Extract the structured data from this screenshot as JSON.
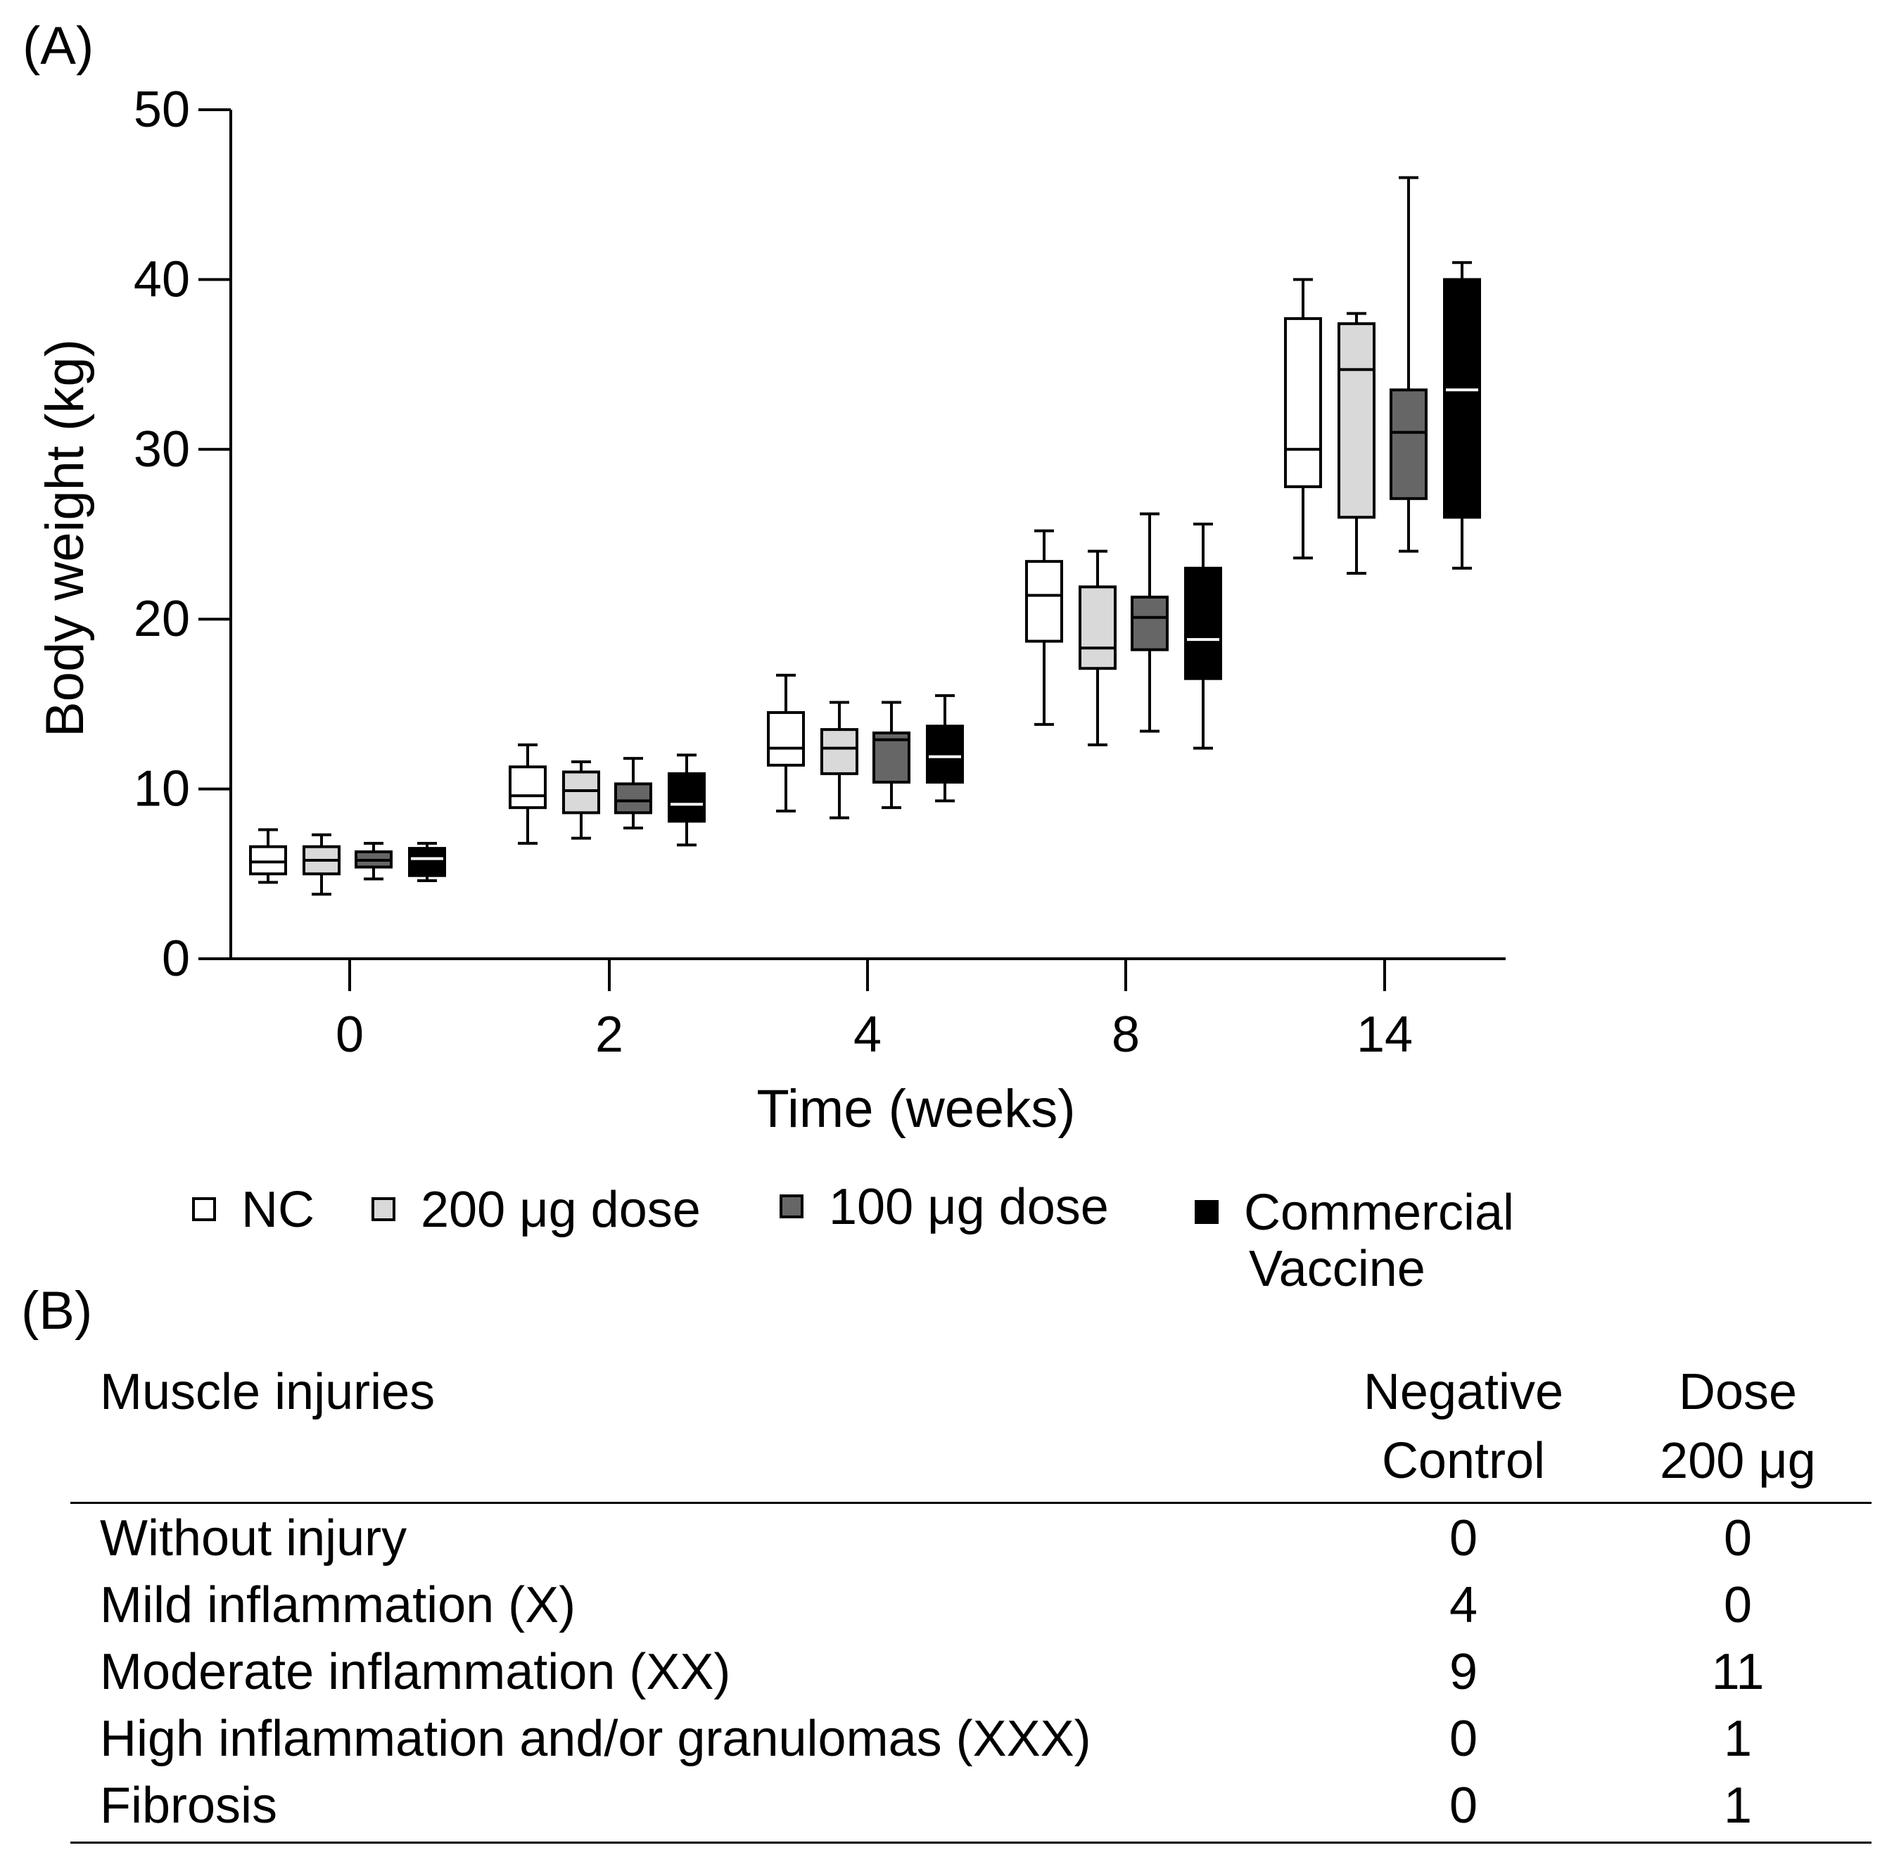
{
  "panels": {
    "a_label": "(A)",
    "b_label": "(B)"
  },
  "chart_data": {
    "type": "boxplot",
    "xlabel": "Time (weeks)",
    "ylabel": "Body weight (kg)",
    "ylim": [
      0,
      50
    ],
    "yticks": [
      0,
      10,
      20,
      30,
      40,
      50
    ],
    "categories": [
      "0",
      "2",
      "4",
      "8",
      "14"
    ],
    "series": [
      {
        "name": "NC",
        "color": "#ffffff",
        "median_color": "#000000",
        "boxes": [
          {
            "min": 4.5,
            "q1": 5.0,
            "median": 5.7,
            "q3": 6.6,
            "max": 7.6
          },
          {
            "min": 6.8,
            "q1": 8.9,
            "median": 9.6,
            "q3": 11.3,
            "max": 12.6
          },
          {
            "min": 8.7,
            "q1": 11.4,
            "median": 12.4,
            "q3": 14.5,
            "max": 16.7
          },
          {
            "min": 13.8,
            "q1": 18.7,
            "median": 21.4,
            "q3": 23.4,
            "max": 25.2
          },
          {
            "min": 23.6,
            "q1": 27.8,
            "median": 30.0,
            "q3": 37.7,
            "max": 40.0
          }
        ]
      },
      {
        "name": "200 μg dose",
        "color": "#d9d9d9",
        "median_color": "#000000",
        "boxes": [
          {
            "min": 3.8,
            "q1": 5.0,
            "median": 5.8,
            "q3": 6.6,
            "max": 7.3
          },
          {
            "min": 7.1,
            "q1": 8.6,
            "median": 9.9,
            "q3": 11.0,
            "max": 11.6
          },
          {
            "min": 8.3,
            "q1": 10.9,
            "median": 12.4,
            "q3": 13.5,
            "max": 15.1
          },
          {
            "min": 12.6,
            "q1": 17.1,
            "median": 18.3,
            "q3": 21.9,
            "max": 24.0
          },
          {
            "min": 22.7,
            "q1": 26.0,
            "median": 34.7,
            "q3": 37.4,
            "max": 38.0
          }
        ]
      },
      {
        "name": "100 μg dose",
        "color": "#666666",
        "median_color": "#000000",
        "boxes": [
          {
            "min": 4.7,
            "q1": 5.4,
            "median": 5.8,
            "q3": 6.3,
            "max": 6.8
          },
          {
            "min": 7.7,
            "q1": 8.6,
            "median": 9.3,
            "q3": 10.3,
            "max": 11.8
          },
          {
            "min": 8.9,
            "q1": 10.4,
            "median": 12.9,
            "q3": 13.3,
            "max": 15.1
          },
          {
            "min": 13.4,
            "q1": 18.2,
            "median": 20.1,
            "q3": 21.3,
            "max": 26.2
          },
          {
            "min": 24.0,
            "q1": 27.1,
            "median": 31.0,
            "q3": 33.5,
            "max": 46.0
          }
        ]
      },
      {
        "name": "Commercial Vaccine",
        "color": "#000000",
        "median_color": "#ffffff",
        "boxes": [
          {
            "min": 4.6,
            "q1": 4.9,
            "median": 5.9,
            "q3": 6.5,
            "max": 6.8
          },
          {
            "min": 6.7,
            "q1": 8.1,
            "median": 9.1,
            "q3": 10.9,
            "max": 12.0
          },
          {
            "min": 9.3,
            "q1": 10.4,
            "median": 11.9,
            "q3": 13.7,
            "max": 15.5
          },
          {
            "min": 12.4,
            "q1": 16.5,
            "median": 18.8,
            "q3": 23.0,
            "max": 25.6
          },
          {
            "min": 23.0,
            "q1": 26.0,
            "median": 33.5,
            "q3": 40.0,
            "max": 41.0
          }
        ]
      }
    ]
  },
  "legend": {
    "items": [
      {
        "label": "NC",
        "color": "#ffffff"
      },
      {
        "label": "200 μg dose",
        "color": "#d9d9d9"
      },
      {
        "label": "100 μg dose",
        "color": "#666666"
      },
      {
        "label_line1": "Commercial",
        "label_line2": "Vaccine",
        "color": "#000000"
      }
    ]
  },
  "table": {
    "header": {
      "col1": "Muscle injuries",
      "col2_line1": "Negative",
      "col2_line2": "Control",
      "col3_line1": "Dose",
      "col3_line2": "200 μg"
    },
    "rows": [
      {
        "label": "Without injury",
        "nc": "0",
        "dose": "0"
      },
      {
        "label": "Mild inflammation (X)",
        "nc": "4",
        "dose": "0"
      },
      {
        "label": "Moderate inflammation (XX)",
        "nc": "9",
        "dose": "11"
      },
      {
        "label": "High inflammation and/or granulomas (XXX)",
        "nc": "0",
        "dose": "1"
      },
      {
        "label": "Fibrosis",
        "nc": "0",
        "dose": "1"
      }
    ]
  }
}
